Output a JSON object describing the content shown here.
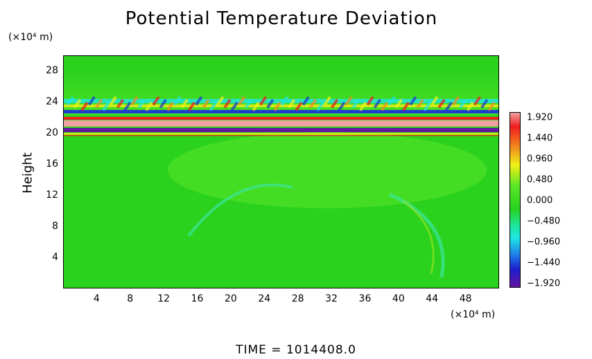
{
  "chart_data": {
    "type": "heatmap",
    "title": "Potential Temperature Deviation",
    "ylabel": "Height",
    "y_unit": "(×10⁴ m)",
    "x_unit": "(×10⁴ m)",
    "xlim": [
      0,
      52
    ],
    "ylim": [
      0,
      30
    ],
    "x_ticks": [
      "4",
      "8",
      "12",
      "16",
      "20",
      "24",
      "28",
      "32",
      "36",
      "40",
      "44",
      "48"
    ],
    "y_ticks": [
      "4",
      "8",
      "12",
      "16",
      "20",
      "24",
      "28"
    ],
    "colorbar": {
      "range": [
        -1.92,
        1.92
      ],
      "labels": [
        "1.920",
        "1.440",
        "0.960",
        "0.480",
        "0.000",
        "-0.480",
        "-0.960",
        "-1.440",
        "-1.920"
      ]
    },
    "field_bands": [
      {
        "y_range": [
          21.5,
          22.8
        ],
        "value": "±1.9 (oscillating)"
      },
      {
        "y_range": [
          20.2,
          21.5
        ],
        "value": "±1.9 (strong positive/negative layers)"
      },
      {
        "y_range": [
          0,
          19.5
        ],
        "value": "≈0.0 with weak anomalies"
      }
    ]
  },
  "footer": {
    "time_label": "TIME  =  1014408.0"
  },
  "colors": {
    "background": "#2ad21e",
    "light_green": "#5ae628",
    "cyan": "#1ee6e6",
    "blue": "#1e3ccd",
    "purple": "#6414a0",
    "yellow": "#f0f014",
    "red": "#f01e1e",
    "pink": "#f0a0a0"
  }
}
